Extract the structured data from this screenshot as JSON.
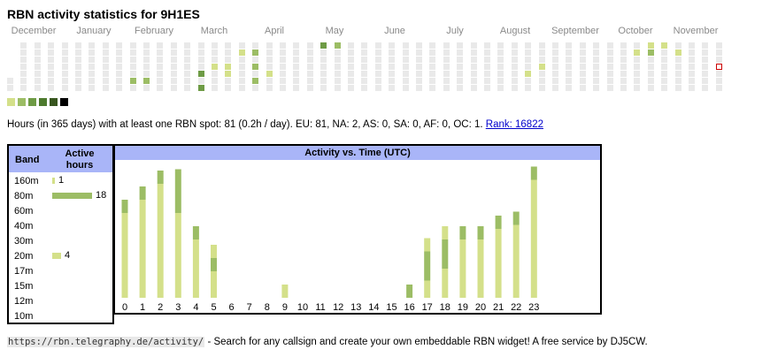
{
  "title": "RBN activity statistics for 9H1ES",
  "months": [
    "December",
    "January",
    "February",
    "March",
    "April",
    "May",
    "June",
    "July",
    "August",
    "September",
    "October",
    "November"
  ],
  "calendar": {
    "weeks": 53,
    "colors": {
      "empty": "#e9e9e9",
      "l1": "#d4e08a",
      "l2": "#9cbd65",
      "l3": "#6e9b45",
      "l4": "#4d7a2e",
      "l5": "#38561f",
      "l6": "#000000"
    },
    "active_cells": [
      {
        "week": 17,
        "day": 1,
        "level": "l1"
      },
      {
        "week": 18,
        "day": 1,
        "level": "l2"
      },
      {
        "week": 16,
        "day": 3,
        "level": "l1"
      },
      {
        "week": 18,
        "day": 3,
        "level": "l2"
      },
      {
        "week": 15,
        "day": 3,
        "level": "l1"
      },
      {
        "week": 14,
        "day": 4,
        "level": "l3"
      },
      {
        "week": 16,
        "day": 4,
        "level": "l1"
      },
      {
        "week": 19,
        "day": 4,
        "level": "l1"
      },
      {
        "week": 9,
        "day": 5,
        "level": "l2"
      },
      {
        "week": 10,
        "day": 5,
        "level": "l2"
      },
      {
        "week": 14,
        "day": 6,
        "level": "l3"
      },
      {
        "week": 18,
        "day": 5,
        "level": "l2"
      },
      {
        "week": 23,
        "day": 0,
        "level": "l3"
      },
      {
        "week": 24,
        "day": 0,
        "level": "l2"
      },
      {
        "week": 38,
        "day": 4,
        "level": "l1"
      },
      {
        "week": 39,
        "day": 3,
        "level": "l1"
      },
      {
        "week": 46,
        "day": 1,
        "level": "l1"
      },
      {
        "week": 47,
        "day": 1,
        "level": "l2"
      },
      {
        "week": 47,
        "day": 0,
        "level": "l1"
      },
      {
        "week": 48,
        "day": 0,
        "level": "l1"
      },
      {
        "week": 49,
        "day": 1,
        "level": "l1"
      }
    ],
    "today": {
      "week": 52,
      "day": 3,
      "border_color": "#cc0000"
    }
  },
  "legend": {
    "colors": [
      "#d4e08a",
      "#9cbd65",
      "#6e9b45",
      "#4d7a2e",
      "#38561f",
      "#000000"
    ]
  },
  "summary": {
    "text": "Hours (in 365 days) with at least one RBN spot: 81 (0.2h / day). EU: 81, NA: 2, AS: 0, SA: 0, AF: 0, OC: 1.",
    "rank_label": "Rank: 16822"
  },
  "bands": {
    "header_band": "Band",
    "header_hours": "Active hours",
    "max_hours": 18,
    "rows": [
      {
        "name": "160m",
        "hours": 1,
        "label": "1",
        "color": "#d4e08a"
      },
      {
        "name": "80m",
        "hours": 18,
        "label": "18",
        "color": "#9cbd65"
      },
      {
        "name": "60m",
        "hours": 0,
        "label": "",
        "color": "#d4e08a"
      },
      {
        "name": "40m",
        "hours": 0,
        "label": "",
        "color": "#d4e08a"
      },
      {
        "name": "30m",
        "hours": 0,
        "label": "",
        "color": "#d4e08a"
      },
      {
        "name": "20m",
        "hours": 4,
        "label": "4",
        "color": "#d4e08a"
      },
      {
        "name": "17m",
        "hours": 0,
        "label": "",
        "color": "#d4e08a"
      },
      {
        "name": "15m",
        "hours": 0,
        "label": "",
        "color": "#d4e08a"
      },
      {
        "name": "12m",
        "hours": 0,
        "label": "",
        "color": "#d4e08a"
      },
      {
        "name": "10m",
        "hours": 0,
        "label": "",
        "color": "#d4e08a"
      }
    ]
  },
  "chart_data": {
    "type": "bar",
    "title": "Activity vs. Time (UTC)",
    "xlabel": "",
    "ylabel": "",
    "categories": [
      "0",
      "1",
      "2",
      "3",
      "4",
      "5",
      "6",
      "7",
      "8",
      "9",
      "10",
      "11",
      "12",
      "13",
      "14",
      "15",
      "16",
      "17",
      "18",
      "19",
      "20",
      "21",
      "22",
      "23"
    ],
    "ylim": [
      0,
      10
    ],
    "series": [
      {
        "name": "light",
        "color": "#d4e08a",
        "values": [
          6.4,
          7.4,
          8.6,
          6.4,
          4.4,
          2.0,
          0,
          0,
          0,
          1.0,
          0,
          0,
          0,
          0,
          0,
          0,
          0,
          1.3,
          2.2,
          4.4,
          4.4,
          5.2,
          5.5,
          8.9
        ]
      },
      {
        "name": "dark",
        "color": "#9cbd65",
        "values": [
          1.0,
          1.0,
          1.0,
          3.3,
          1.0,
          1.0,
          0,
          0,
          0,
          0,
          0,
          0,
          0,
          0,
          0,
          0,
          1.0,
          2.2,
          2.2,
          1.0,
          1.0,
          1.0,
          1.0,
          1.0
        ]
      },
      {
        "name": "top",
        "color": "#d4e08a",
        "values": [
          0,
          0,
          0,
          0,
          0,
          1.0,
          0,
          0,
          0,
          0,
          0,
          0,
          0,
          0,
          0,
          0,
          0,
          1.0,
          1.0,
          0,
          0,
          0,
          0,
          0
        ]
      }
    ]
  },
  "footer": {
    "url": "https://rbn.telegraphy.de/activity/",
    "text": " - Search for any callsign and create your own embeddable RBN widget! A free service by DJ5CW."
  }
}
